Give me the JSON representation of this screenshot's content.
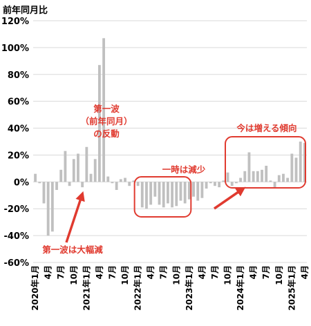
{
  "chart_data": {
    "type": "bar",
    "title": "前年同月比",
    "ylim": [
      -60,
      120
    ],
    "y_ticks": [
      "120%",
      "100%",
      "80%",
      "60%",
      "40%",
      "20%",
      "0%",
      "-20%",
      "-40%",
      "-60%"
    ],
    "grid": "horizontal",
    "x_tick_labels": [
      "2020年1月",
      "4月",
      "7月",
      "10月",
      "2021年1月",
      "4月",
      "7月",
      "10月",
      "2022年1月",
      "4月",
      "7月",
      "10月",
      "2023年1月",
      "4月",
      "7月",
      "10月",
      "2024年1月",
      "4月",
      "7月",
      "10月",
      "2025年1月",
      "4月"
    ],
    "values": [
      6,
      -1,
      -16,
      -40,
      -37,
      -6,
      9,
      23,
      -3,
      17,
      21,
      -4,
      26,
      6,
      17,
      87,
      107,
      4,
      -1,
      -6,
      2,
      3,
      -3,
      1,
      -3,
      -19,
      -20,
      -17,
      -11,
      -17,
      -19,
      -16,
      -19,
      -18,
      -14,
      -16,
      -13,
      -11,
      -14,
      -12,
      -5,
      -1,
      -3,
      -4,
      1,
      7,
      -3,
      -1,
      3,
      8,
      22,
      8,
      8,
      9,
      12,
      1,
      -4,
      5,
      6,
      3,
      21,
      18,
      30,
      29
    ],
    "bar_color": "#c0c0c0",
    "annotations": {
      "first_wave_drop": "第一波は大幅減",
      "rebound_line1": "第一波",
      "rebound_line2": "（前年同月）",
      "rebound_line3": "の反動",
      "temp_decrease": "一時は減少",
      "now_increasing": "今は増える傾向"
    },
    "annotation_color": "#e03a2f"
  }
}
